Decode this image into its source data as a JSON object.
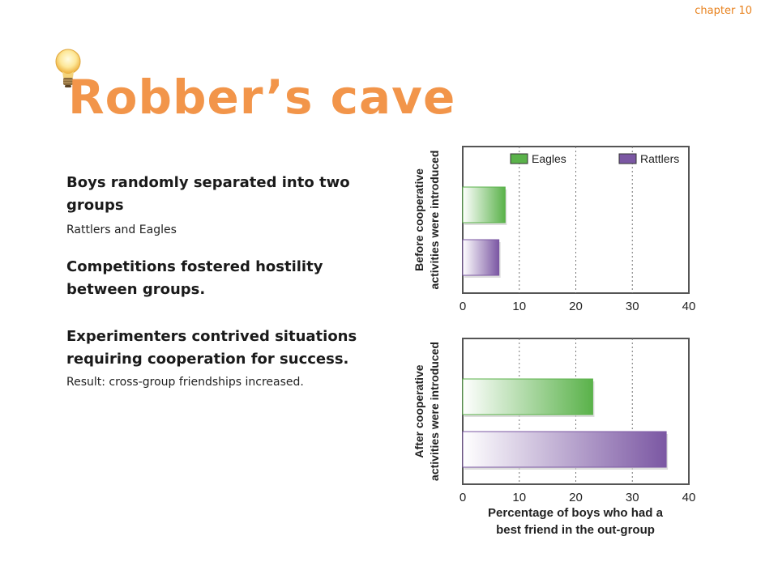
{
  "header": {
    "chapter": "chapter 10"
  },
  "slide": {
    "title": "Robber’s cave"
  },
  "bullets": {
    "b1": "Boys randomly separated into two groups",
    "b1_sub": "Rattlers and Eagles",
    "b2": "Competitions fostered hostility between groups.",
    "b3": "Experimenters contrived situations requiring cooperation for success.",
    "b3_sub": "Result: cross-group friendships increased."
  },
  "icons": [
    "lightbulb-icon"
  ],
  "chart_data": {
    "type": "bar",
    "orientation": "horizontal",
    "xlabel": [
      "Percentage of boys who had a",
      "best friend in the out-group"
    ],
    "xlim": [
      0,
      40
    ],
    "xticks": [
      0,
      10,
      20,
      30,
      40
    ],
    "grid": "dotted vertical",
    "legend": "top-right of upper panel",
    "series_colors": {
      "Eagles": "#5ab24a",
      "Rattlers": "#7b57a3"
    },
    "panels": [
      {
        "label": [
          "Before cooperative",
          "activities were introduced"
        ],
        "show_legend": true,
        "bars": [
          {
            "series": "Eagles",
            "value": 7.5
          },
          {
            "series": "Rattlers",
            "value": 6.4
          }
        ]
      },
      {
        "label": [
          "After cooperative",
          "activities were introduced"
        ],
        "show_legend": false,
        "bars": [
          {
            "series": "Eagles",
            "value": 23
          },
          {
            "series": "Rattlers",
            "value": 36
          }
        ]
      }
    ]
  }
}
